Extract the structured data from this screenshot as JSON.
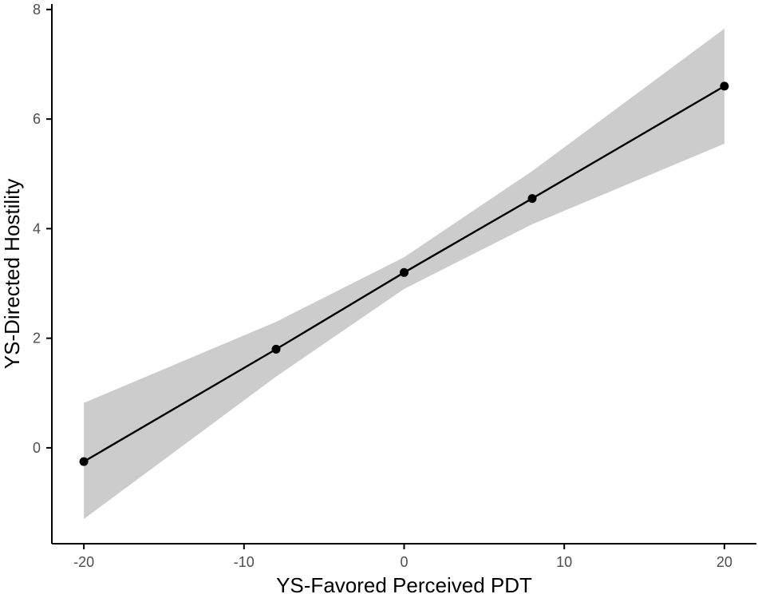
{
  "chart_data": {
    "type": "line",
    "xlabel": "YS-Favored Perceived PDT",
    "ylabel": "YS-Directed Hostility",
    "xlim": [
      -22,
      22
    ],
    "ylim": [
      -1.75,
      8.1
    ],
    "x_ticks": [
      -20,
      -10,
      0,
      10,
      20
    ],
    "x_tick_labels": [
      "-20",
      "-10",
      "0",
      "10",
      "20"
    ],
    "y_ticks": [
      0,
      2,
      4,
      6,
      8
    ],
    "y_tick_labels": [
      "0",
      "2",
      "4",
      "6",
      "8"
    ],
    "grid": false,
    "legend": "none",
    "series": [
      {
        "x": [
          -20,
          -8,
          0,
          8,
          20
        ],
        "y": [
          -0.25,
          1.8,
          3.2,
          4.55,
          6.6
        ],
        "ci_lower": [
          -1.3,
          1.3,
          2.9,
          4.08,
          5.55
        ],
        "ci_upper": [
          0.82,
          2.3,
          3.48,
          5.05,
          7.65
        ]
      }
    ],
    "colors": {
      "line": "#000000",
      "band": "#cccccc",
      "points": "#000000"
    }
  }
}
